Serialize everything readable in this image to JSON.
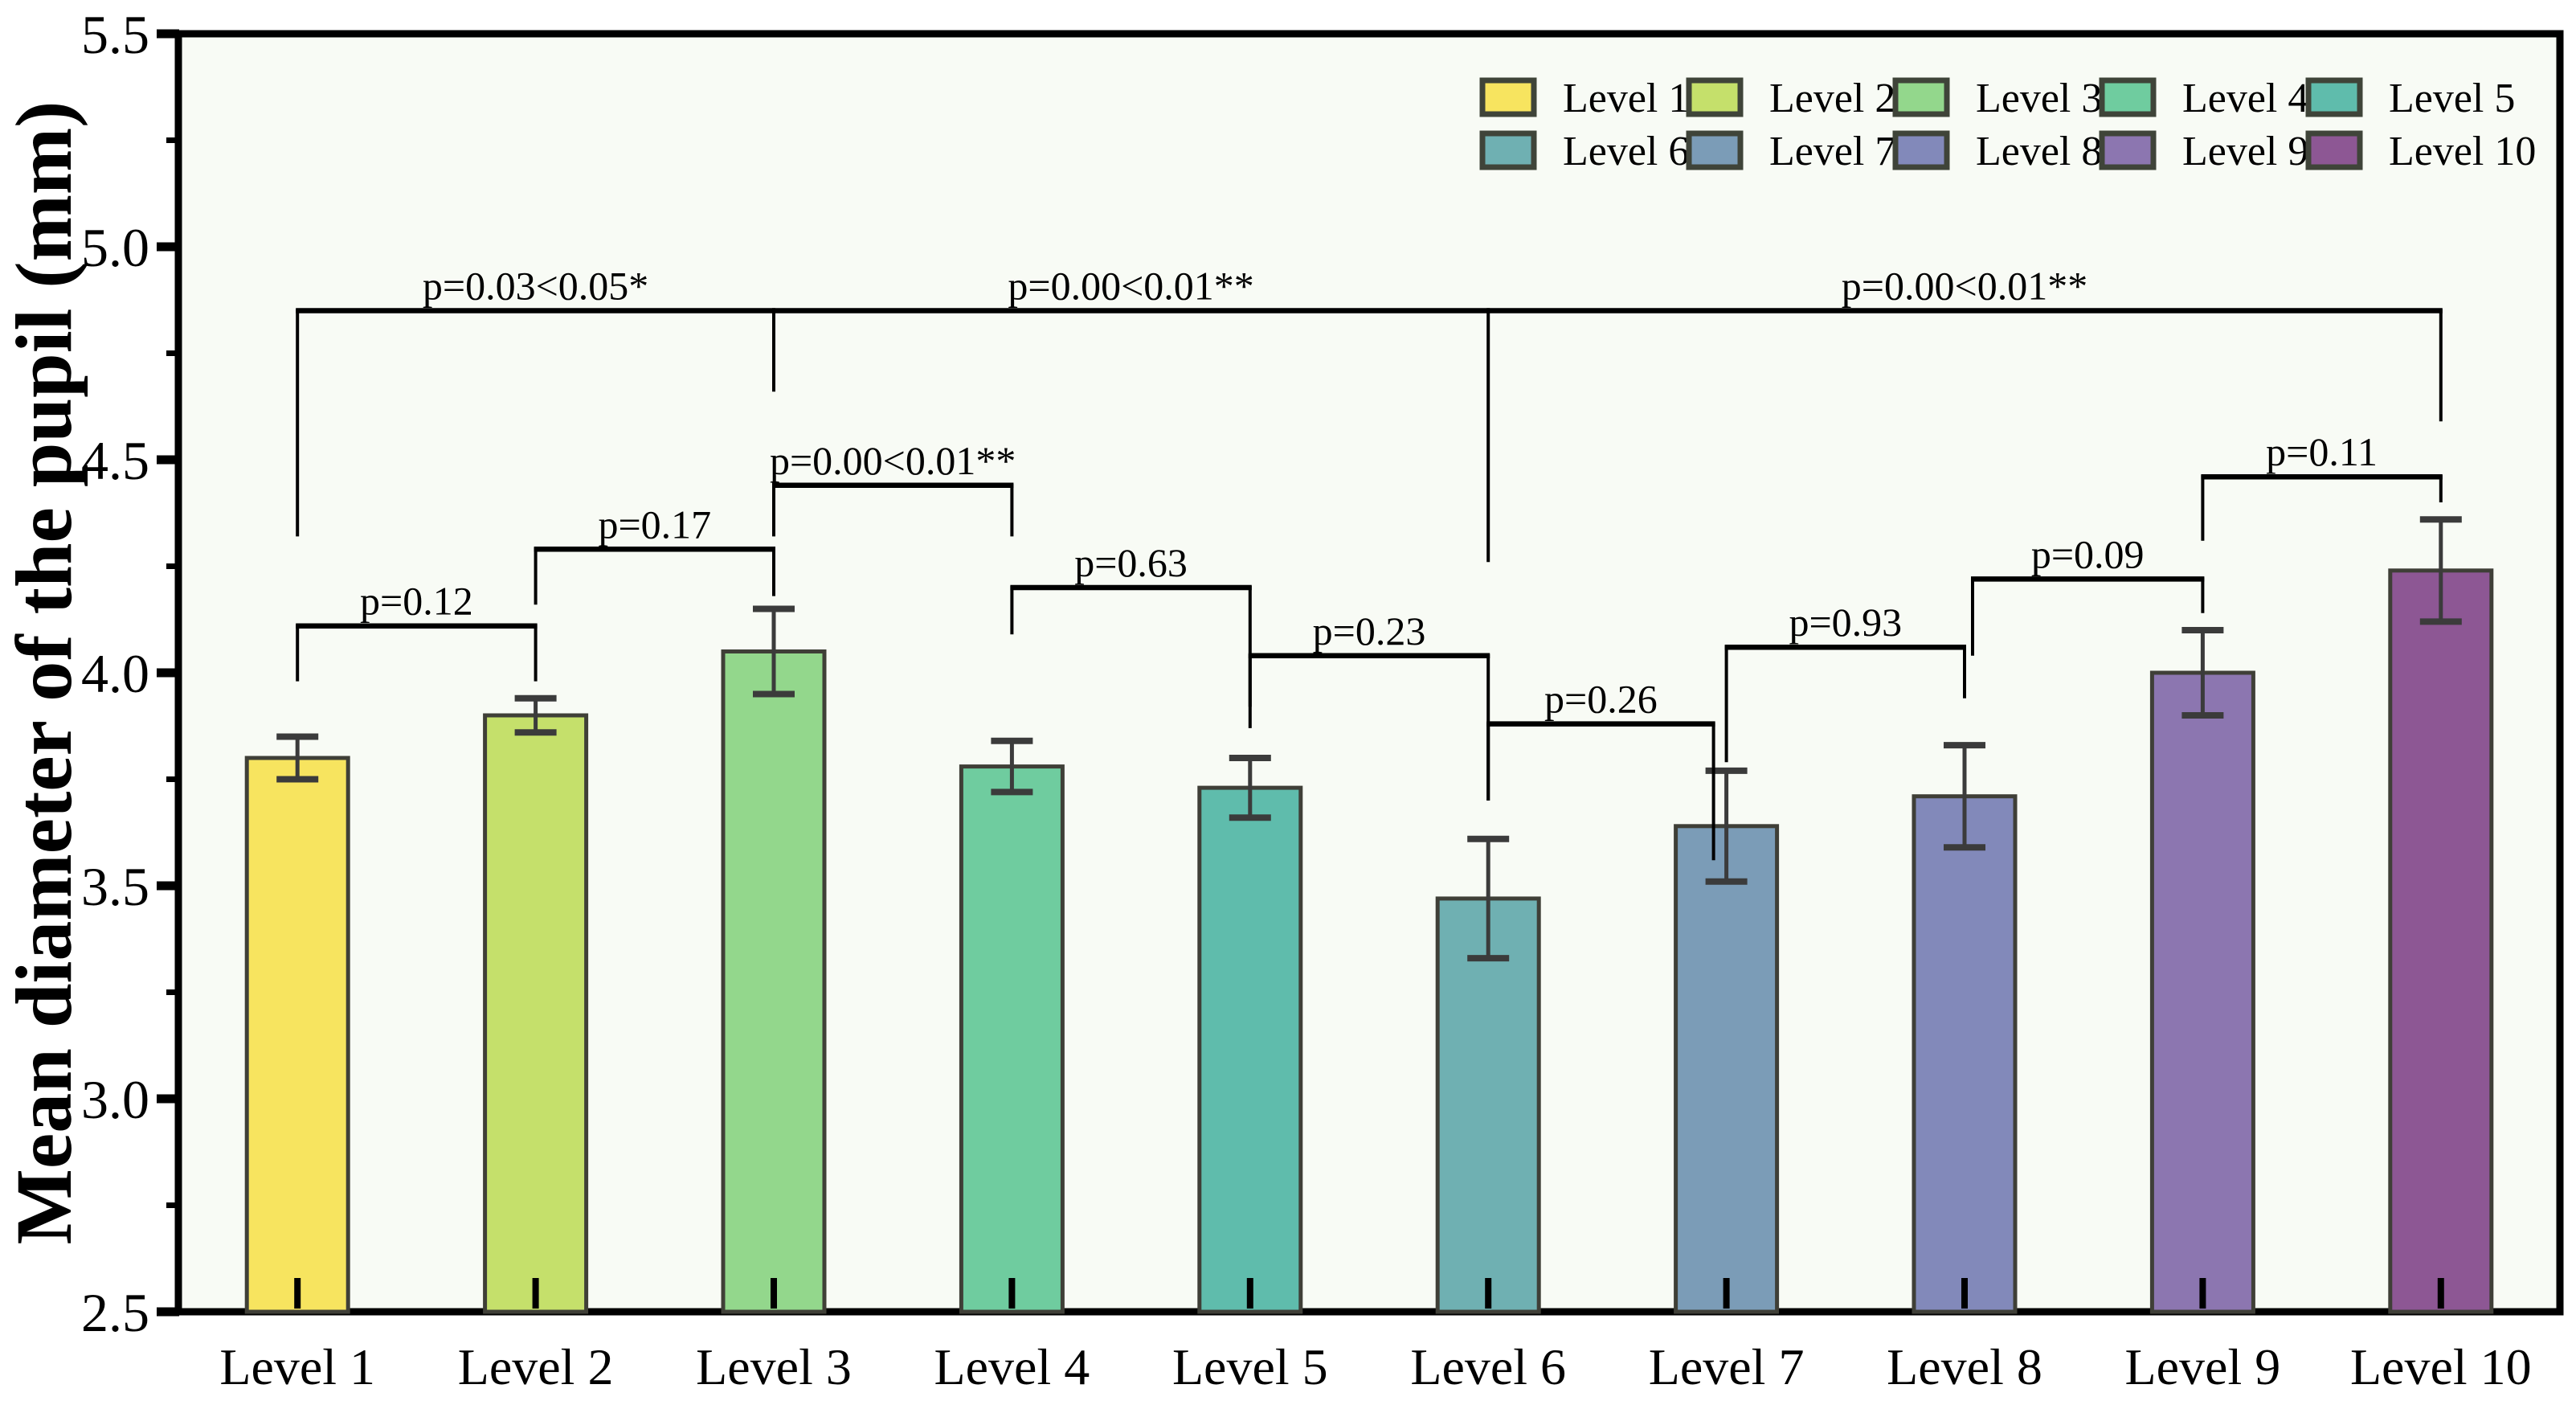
{
  "page": {
    "background": "#ffffff"
  },
  "chart_data": {
    "type": "bar",
    "title": "",
    "xlabel": "",
    "ylabel": "Mean diameter of the pupil (mm)",
    "ylim": [
      2.5,
      5.5
    ],
    "yticks": [
      2.5,
      3.0,
      3.5,
      4.0,
      4.5,
      5.0,
      5.5
    ],
    "ytick_labels": [
      "2.5",
      "3.0",
      "3.5",
      "4.0",
      "4.5",
      "5.0",
      "5.5"
    ],
    "minor_yticks": [
      2.75,
      3.25,
      3.75,
      4.25,
      4.75,
      5.25
    ],
    "grid": false,
    "legend_position": "top-right-inside",
    "legend_rows": 2,
    "legend_columns": 5,
    "categories": [
      "Level 1",
      "Level 2",
      "Level 3",
      "Level 4",
      "Level 5",
      "Level 6",
      "Level 7",
      "Level 8",
      "Level 9",
      "Level 10"
    ],
    "values": [
      3.8,
      3.9,
      4.05,
      3.78,
      3.73,
      3.47,
      3.64,
      3.71,
      4.0,
      4.24
    ],
    "errors": [
      0.05,
      0.04,
      0.1,
      0.06,
      0.07,
      0.14,
      0.13,
      0.12,
      0.1,
      0.12
    ],
    "bar_colors": [
      "#f7e45f",
      "#c5e06b",
      "#93d78c",
      "#6fcc9f",
      "#5fbcac",
      "#6fb0b2",
      "#7b9cb7",
      "#8289ba",
      "#8c76b0",
      "#8d5794"
    ],
    "plot_background": "#f8fbf5",
    "bar_edge_color": "#3f3f37",
    "error_bar_color": "#3b3b3b",
    "axis_color": "#000000",
    "significance_brackets": [
      {
        "from": "Level 1",
        "to": "Level 2",
        "label": "p=0.12",
        "bar_y": 4.11,
        "leg_from_y": 3.98,
        "leg_to_y": 3.98
      },
      {
        "from": "Level 2",
        "to": "Level 3",
        "label": "p=0.17",
        "bar_y": 4.29,
        "leg_from_y": 4.16,
        "leg_to_y": 4.18
      },
      {
        "from": "Level 3",
        "to": "Level 4",
        "label": "p=0.00<0.01**",
        "bar_y": 4.44,
        "leg_from_y": 4.32,
        "leg_to_y": 4.32
      },
      {
        "from": "Level 4",
        "to": "Level 5",
        "label": "p=0.63",
        "bar_y": 4.2,
        "leg_from_y": 4.09,
        "leg_to_y": 3.92
      },
      {
        "from": "Level 5",
        "to": "Level 6",
        "label": "p=0.23",
        "bar_y": 4.04,
        "leg_from_y": 3.87,
        "leg_to_y": 3.7
      },
      {
        "from": "Level 6",
        "to": "Level 7",
        "label": "p=0.26",
        "bar_y": 3.88,
        "leg_from_y": 3.7,
        "leg_to_y": 3.56,
        "leg_to_dx": -16
      },
      {
        "from": "Level 7",
        "to": "Level 8",
        "label": "p=0.93",
        "bar_y": 4.06,
        "leg_from_y": 3.79,
        "leg_to_y": 3.94
      },
      {
        "from": "Level 8",
        "to": "Level 9",
        "label": "p=0.09",
        "bar_y": 4.22,
        "leg_from_y": 4.04,
        "leg_to_y": 4.14,
        "leg_from_dx": 10
      },
      {
        "from": "Level 9",
        "to": "Level 10",
        "label": "p=0.11",
        "bar_y": 4.46,
        "leg_from_y": 4.31,
        "leg_to_y": 4.4
      },
      {
        "from": "Level 1",
        "to": "Level 3",
        "label": "p=0.03<0.05*",
        "bar_y": 4.85,
        "leg_from_y": 4.32,
        "leg_to_y": 4.66
      },
      {
        "from": "Level 3",
        "to": "Level 6",
        "label": "p=0.00<0.01**",
        "bar_y": 4.85,
        "leg_from_y": null,
        "leg_to_y": 4.26
      },
      {
        "from": "Level 6",
        "to": "Level 10",
        "label": "p=0.00<0.01**",
        "bar_y": 4.85,
        "leg_from_y": null,
        "leg_to_y": 4.59
      }
    ]
  }
}
